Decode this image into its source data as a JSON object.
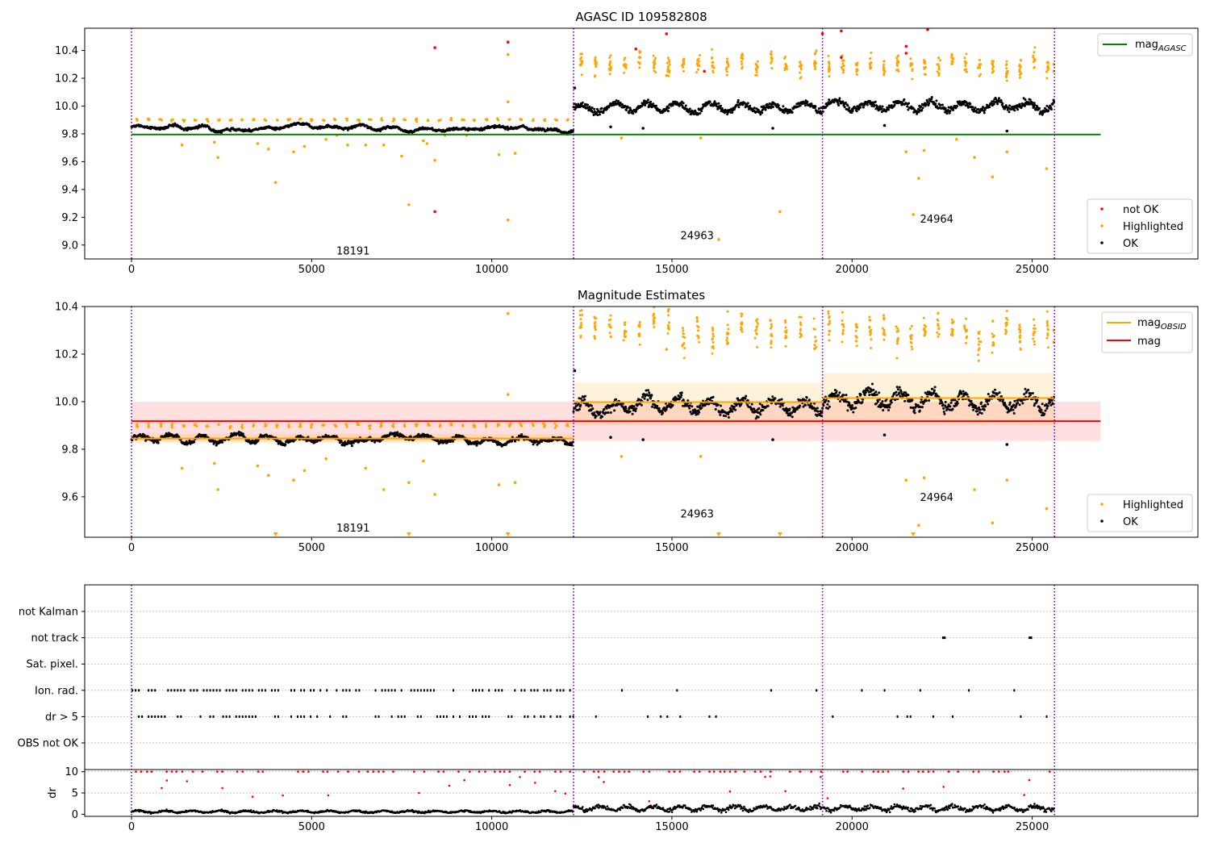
{
  "chart_data": [
    {
      "type": "scatter",
      "title": "AGASC ID 109582808",
      "xlabel": "",
      "ylabel": "",
      "xlim": [
        -1300,
        29600
      ],
      "ylim": [
        8.9,
        10.56
      ],
      "xticks": [
        0,
        5000,
        10000,
        15000,
        20000,
        25000
      ],
      "xtick_labels": [
        "0",
        "5000",
        "10000",
        "15000",
        "20000",
        "25000"
      ],
      "yticks": [
        9.0,
        9.2,
        9.4,
        9.6,
        9.8,
        10.0,
        10.2,
        10.4
      ],
      "ytick_labels": [
        "9.0",
        "9.2",
        "9.4",
        "9.6",
        "9.8",
        "10.0",
        "10.2",
        "10.4"
      ],
      "obs_boundaries": [
        0,
        12270,
        19180,
        25620
      ],
      "obs_labels": [
        {
          "x": 6150,
          "y": 8.96,
          "text": "18191"
        },
        {
          "x": 15700,
          "y": 9.07,
          "text": "24963"
        },
        {
          "x": 22350,
          "y": 9.19,
          "text": "24964"
        }
      ],
      "segments": [
        {
          "x0": 0,
          "x1": 12270,
          "level": 9.845,
          "spread": 0.018,
          "hl_level": 9.9
        },
        {
          "x0": 12270,
          "x1": 19180,
          "level": 9.99,
          "spread": 0.05,
          "hl_level": 10.3
        },
        {
          "x0": 19180,
          "x1": 25620,
          "level": 10.01,
          "spread": 0.055,
          "hl_level": 10.3
        }
      ],
      "series": [
        {
          "name": "mag$_{AGASC}$",
          "kind": "hline",
          "y": 9.795,
          "x0": 0,
          "x1": 26900,
          "color": "#008000"
        },
        {
          "name": "not OK",
          "kind": "points",
          "color": "#ff0000",
          "points": [
            [
              8420,
              10.42
            ],
            [
              10450,
              10.46
            ],
            [
              8420,
              9.24
            ],
            [
              14000,
              10.41
            ],
            [
              14850,
              10.52
            ],
            [
              15900,
              10.25
            ],
            [
              19180,
              10.52
            ],
            [
              19700,
              10.54
            ],
            [
              19700,
              10.35
            ],
            [
              21500,
              10.43
            ],
            [
              21500,
              10.38
            ],
            [
              22100,
              10.55
            ]
          ]
        },
        {
          "name": "Highlighted",
          "kind": "points",
          "color": "#ffa500",
          "points": [
            [
              1400,
              9.72
            ],
            [
              2300,
              9.74
            ],
            [
              2400,
              9.63
            ],
            [
              3500,
              9.73
            ],
            [
              3800,
              9.69
            ],
            [
              4000,
              9.45
            ],
            [
              4500,
              9.67
            ],
            [
              4800,
              9.71
            ],
            [
              5400,
              9.76
            ],
            [
              5700,
              9.79
            ],
            [
              6000,
              9.72
            ],
            [
              6500,
              9.72
            ],
            [
              7000,
              9.72
            ],
            [
              7500,
              9.64
            ],
            [
              7700,
              9.29
            ],
            [
              8100,
              9.75
            ],
            [
              8200,
              9.73
            ],
            [
              8420,
              9.61
            ],
            [
              8700,
              9.79
            ],
            [
              9300,
              9.79
            ],
            [
              10200,
              9.65
            ],
            [
              10450,
              10.37
            ],
            [
              10450,
              10.03
            ],
            [
              10450,
              9.18
            ],
            [
              10650,
              9.66
            ],
            [
              13600,
              9.77
            ],
            [
              14850,
              10.22
            ],
            [
              15800,
              9.77
            ],
            [
              16300,
              9.04
            ],
            [
              18000,
              9.24
            ],
            [
              21500,
              9.67
            ],
            [
              21700,
              9.22
            ],
            [
              21850,
              9.48
            ],
            [
              22000,
              9.68
            ],
            [
              22900,
              9.76
            ],
            [
              23400,
              9.63
            ],
            [
              23900,
              9.49
            ],
            [
              24300,
              9.67
            ],
            [
              25400,
              9.55
            ],
            [
              25600,
              10.3
            ],
            [
              25600,
              10.25
            ]
          ]
        },
        {
          "name": "OK",
          "kind": "points",
          "color": "#000000",
          "points": [
            [
              13300,
              9.85
            ],
            [
              14200,
              9.84
            ],
            [
              17800,
              9.84
            ],
            [
              20900,
              9.86
            ],
            [
              24300,
              9.82
            ],
            [
              12300,
              10.13
            ]
          ]
        }
      ],
      "legend": [
        {
          "position": "upper right",
          "entries": [
            {
              "label": "mag",
              "sub": "AGASC",
              "marker": "line",
              "color": "#008000"
            }
          ]
        },
        {
          "position": "lower right",
          "entries": [
            {
              "label": "not OK",
              "marker": "dot",
              "color": "#ff0000"
            },
            {
              "label": "Highlighted",
              "marker": "dot",
              "color": "#ffa500"
            },
            {
              "label": "OK",
              "marker": "dot",
              "color": "#000000"
            }
          ]
        }
      ]
    },
    {
      "type": "scatter",
      "title": "Magnitude Estimates",
      "xlabel": "",
      "ylabel": "",
      "xlim": [
        -1300,
        29600
      ],
      "ylim": [
        9.43,
        10.4
      ],
      "xticks": [
        0,
        5000,
        10000,
        15000,
        20000,
        25000
      ],
      "xtick_labels": [
        "0",
        "5000",
        "10000",
        "15000",
        "20000",
        "25000"
      ],
      "yticks": [
        9.6,
        9.8,
        10.0,
        10.2,
        10.4
      ],
      "ytick_labels": [
        "9.6",
        "9.8",
        "10.0",
        "10.2",
        "10.4"
      ],
      "obs_boundaries": [
        0,
        12270,
        19180,
        25620
      ],
      "obs_labels": [
        {
          "x": 6150,
          "y": 9.47,
          "text": "18191"
        },
        {
          "x": 15700,
          "y": 9.53,
          "text": "24963"
        },
        {
          "x": 22350,
          "y": 9.6,
          "text": "24964"
        }
      ],
      "mag_band": {
        "x0": 0,
        "x1": 26900,
        "y0": 9.835,
        "y1": 10.0,
        "center": 9.918,
        "color": "#ff0000"
      },
      "obsid_levels": [
        {
          "x0": 0,
          "x1": 12270,
          "y": 9.845,
          "band": [
            9.825,
            9.865
          ]
        },
        {
          "x0": 12270,
          "x1": 19180,
          "y": 9.998,
          "band": [
            9.9,
            10.08
          ]
        },
        {
          "x0": 19180,
          "x1": 25620,
          "y": 10.015,
          "band": [
            9.9,
            10.12
          ]
        }
      ],
      "segments": [
        {
          "x0": 0,
          "x1": 12270,
          "level": 9.845,
          "spread": 0.018,
          "hl_level": 9.9
        },
        {
          "x0": 12270,
          "x1": 19180,
          "level": 9.99,
          "spread": 0.05,
          "hl_level": 10.3
        },
        {
          "x0": 19180,
          "x1": 25620,
          "level": 10.01,
          "spread": 0.055,
          "hl_level": 10.3
        }
      ],
      "series": [
        {
          "name": "mag$_{OBSID}$",
          "kind": "step",
          "color": "#ffa500"
        },
        {
          "name": "mag",
          "kind": "hline",
          "y": 9.918,
          "color": "#ff0000"
        },
        {
          "name": "Highlighted",
          "kind": "points",
          "color": "#ffa500",
          "points": [
            [
              1400,
              9.72
            ],
            [
              2300,
              9.74
            ],
            [
              2400,
              9.63
            ],
            [
              3500,
              9.73
            ],
            [
              3800,
              9.69
            ],
            [
              4500,
              9.67
            ],
            [
              4800,
              9.71
            ],
            [
              5400,
              9.76
            ],
            [
              6500,
              9.72
            ],
            [
              7000,
              9.63
            ],
            [
              7700,
              9.66
            ],
            [
              8100,
              9.75
            ],
            [
              8420,
              9.61
            ],
            [
              10200,
              9.65
            ],
            [
              10450,
              10.37
            ],
            [
              10450,
              10.03
            ],
            [
              10650,
              9.66
            ],
            [
              13600,
              9.77
            ],
            [
              14850,
              10.22
            ],
            [
              15800,
              9.77
            ],
            [
              21500,
              9.67
            ],
            [
              21850,
              9.48
            ],
            [
              22000,
              9.68
            ],
            [
              23400,
              9.63
            ],
            [
              23900,
              9.49
            ],
            [
              24300,
              9.67
            ],
            [
              25400,
              9.55
            ],
            [
              25600,
              10.3
            ],
            [
              25600,
              10.25
            ]
          ]
        },
        {
          "name": "Highlighted (off-scale)",
          "kind": "triangles",
          "color": "#ffa500",
          "points": [
            [
              4000,
              9.44
            ],
            [
              7700,
              9.44
            ],
            [
              10450,
              9.44
            ],
            [
              16300,
              9.44
            ],
            [
              18000,
              9.44
            ],
            [
              21700,
              9.44
            ]
          ]
        },
        {
          "name": "OK",
          "kind": "points",
          "color": "#000000",
          "points": [
            [
              13300,
              9.85
            ],
            [
              14200,
              9.84
            ],
            [
              17800,
              9.84
            ],
            [
              20900,
              9.86
            ],
            [
              24300,
              9.82
            ],
            [
              12300,
              10.13
            ]
          ]
        }
      ],
      "legend": [
        {
          "position": "upper right",
          "entries": [
            {
              "label": "mag",
              "sub": "OBSID",
              "marker": "line",
              "color": "#ffa500"
            },
            {
              "label": "mag",
              "marker": "line",
              "color": "#ff0000"
            }
          ]
        },
        {
          "position": "lower right",
          "entries": [
            {
              "label": "Highlighted",
              "marker": "dot",
              "color": "#ffa500"
            },
            {
              "label": "OK",
              "marker": "dot",
              "color": "#000000"
            }
          ]
        }
      ]
    },
    {
      "type": "scatter",
      "title": "",
      "xlim": [
        -1300,
        29600
      ],
      "flag_rows": [
        "not Kalman",
        "not track",
        "Sat. pixel.",
        "Ion. rad.",
        "dr > 5",
        "OBS not OK"
      ],
      "obs_boundaries": [
        0,
        12270,
        19180,
        25620
      ],
      "flag_marks": {
        "not track": [
          [
            22500,
            22600
          ],
          [
            24900,
            25000
          ]
        ],
        "Ion. rad.": "periodic",
        "dr > 5": "periodic"
      },
      "dr_panel": {
        "ylabel": "dr",
        "ylim": [
          -0.5,
          10.5
        ],
        "yticks": [
          0,
          5,
          10
        ],
        "ytick_labels": [
          "0",
          "5",
          "10"
        ],
        "xticks": [
          0,
          5000,
          10000,
          15000,
          20000,
          25000
        ],
        "xtick_labels": [
          "0",
          "5000",
          "10000",
          "15000",
          "20000",
          "25000"
        ],
        "clipped_value": 10,
        "segment_levels": [
          {
            "x0": 0,
            "x1": 12270,
            "level": 0.6
          },
          {
            "x0": 12270,
            "x1": 19180,
            "level": 1.4
          },
          {
            "x0": 19180,
            "x1": 25620,
            "level": 1.4
          }
        ]
      }
    }
  ]
}
